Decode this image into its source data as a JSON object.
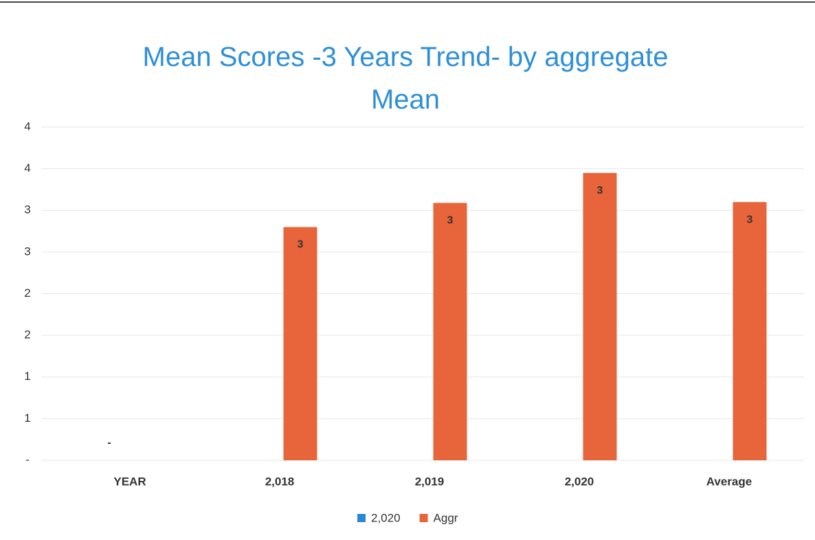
{
  "chart_data": {
    "type": "bar",
    "title": "Mean Scores -3 Years Trend- by aggregate Mean",
    "categories": [
      "YEAR",
      "2,018",
      "2,019",
      "2,020",
      "Average"
    ],
    "series": [
      {
        "name": "2,020",
        "color": "#2e86d6",
        "values": [
          0,
          null,
          null,
          null,
          null
        ],
        "value_labels": [
          "-",
          null,
          null,
          null,
          null
        ]
      },
      {
        "name": "Aggr",
        "color": "#e8643a",
        "values": [
          null,
          2.8,
          3.09,
          3.45,
          3.1
        ],
        "value_labels": [
          null,
          "3",
          "3",
          "3",
          "3"
        ]
      }
    ],
    "ylim": [
      0,
      4
    ],
    "yticks": [
      {
        "value": 0,
        "label": "-"
      },
      {
        "value": 0.5,
        "label": "1"
      },
      {
        "value": 1,
        "label": "1"
      },
      {
        "value": 1.5,
        "label": "2"
      },
      {
        "value": 2,
        "label": "2"
      },
      {
        "value": 2.5,
        "label": "3"
      },
      {
        "value": 3,
        "label": "3"
      },
      {
        "value": 3.5,
        "label": "4"
      },
      {
        "value": 4,
        "label": "4"
      }
    ],
    "grid": true,
    "legend": "bottom"
  }
}
